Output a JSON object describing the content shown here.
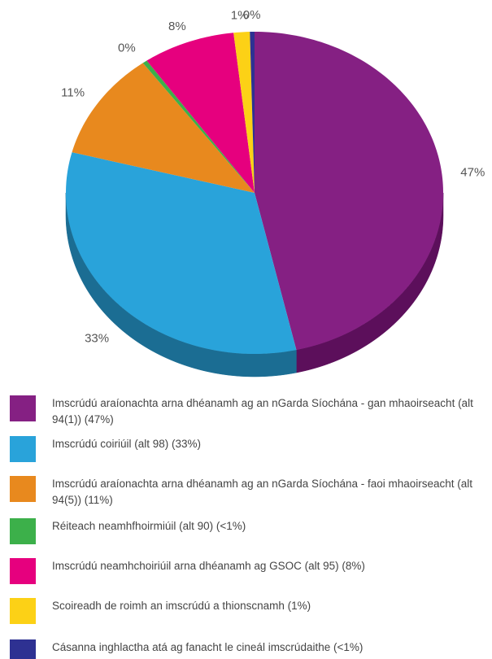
{
  "chart_data": {
    "type": "pie",
    "categories": [
      "Imscrúdú araíonachta arna dhéanamh ag an nGarda Síochána - gan mhaoirseacht (alt 94(1)) (47%)",
      "Imscrúdú coiriúil (alt 98) (33%)",
      "Imscrúdú araíonachta arna dhéanamh ag an nGarda Síochána - faoi mhaoirseacht (alt 94(5)) (11%)",
      "Réiteach neamhfhoirmiúil (alt 90) (<1%)",
      "Imscrúdú neamhchoiriúil arna dhéanamh ag GSOC (alt 95) (8%)",
      "Scoireadh de roimh an imscrúdú a thionscnamh (1%)",
      "Cásanna inghlactha atá ag fanacht le cineál imscrúdaithe (<1%)"
    ],
    "values": [
      47,
      33,
      11,
      0.4,
      8,
      1.4,
      0.4
    ],
    "value_labels": [
      "47%",
      "33%",
      "11%",
      "0%",
      "8%",
      "1%",
      "0%"
    ],
    "colors": [
      "#852083",
      "#29a3da",
      "#e8891e",
      "#3cb04a",
      "#e6007e",
      "#fcd116",
      "#2e3192"
    ],
    "side_colors": [
      "#5c0f5b",
      "#1b6d93",
      "#a05d10",
      "#24752f",
      "#9c0055",
      "#b09000",
      "#1d1f66"
    ],
    "legend": "bottom"
  }
}
